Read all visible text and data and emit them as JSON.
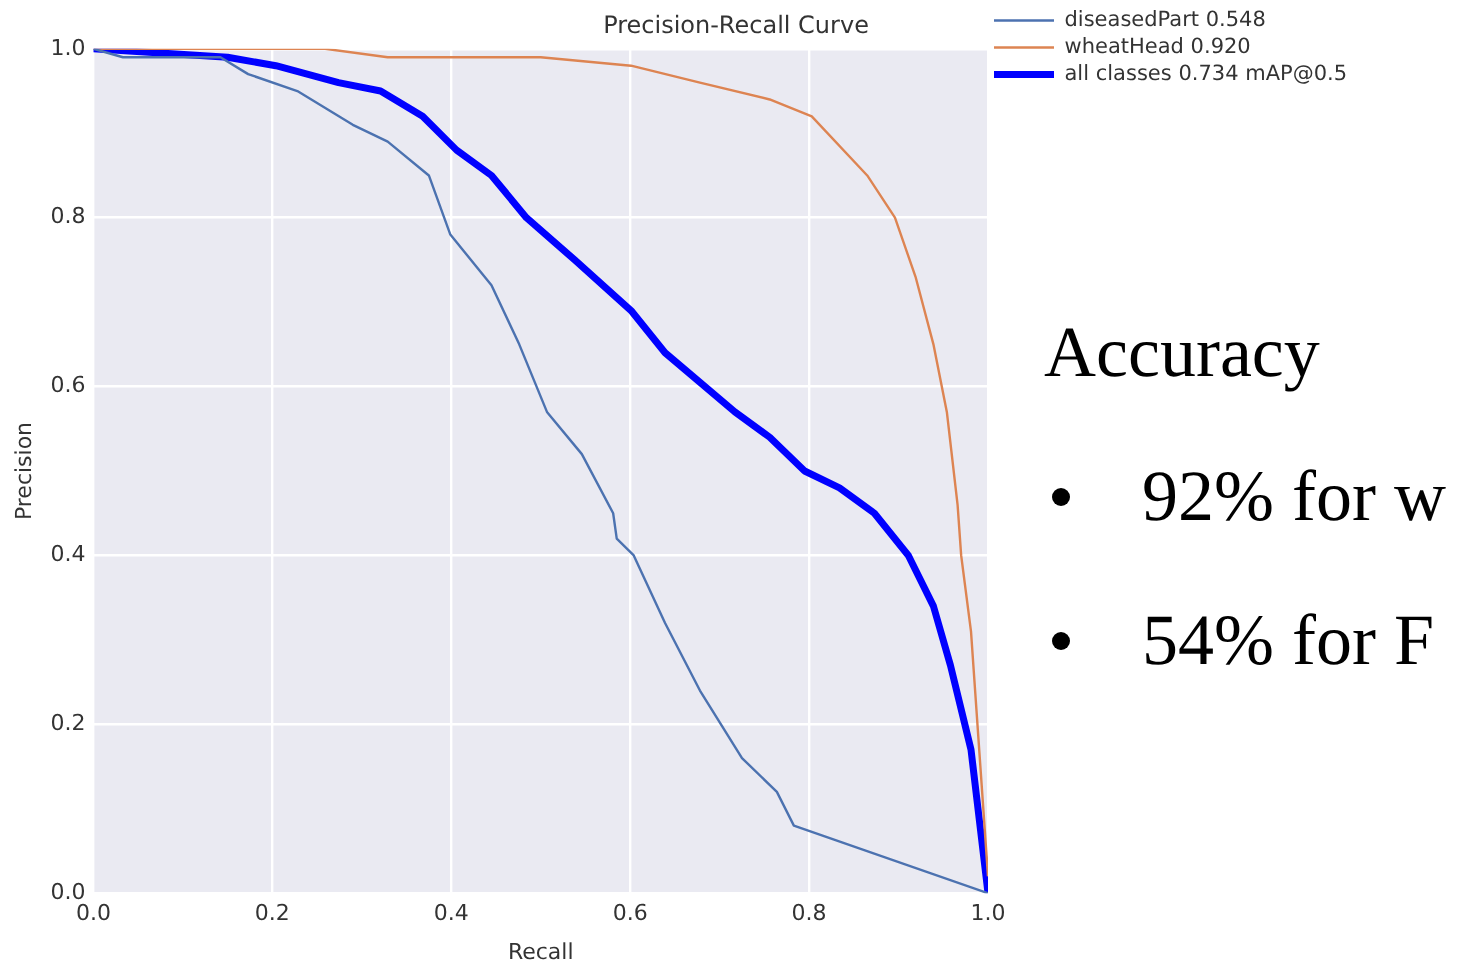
{
  "chart_data": {
    "type": "line",
    "title": "Precision-Recall Curve",
    "xlabel": "Recall",
    "ylabel": "Precision",
    "xlim": [
      0,
      1
    ],
    "ylim": [
      0,
      1
    ],
    "xticks": [
      {
        "value": 0,
        "label": "0.0"
      },
      {
        "value": 0.2,
        "label": "0.2"
      },
      {
        "value": 0.4,
        "label": "0.4"
      },
      {
        "value": 0.6,
        "label": "0.6"
      },
      {
        "value": 0.8,
        "label": "0.8"
      },
      {
        "value": 1,
        "label": "1.0"
      }
    ],
    "yticks": [
      {
        "value": 0,
        "label": "0.0"
      },
      {
        "value": 0.2,
        "label": "0.2"
      },
      {
        "value": 0.4,
        "label": "0.4"
      },
      {
        "value": 0.6,
        "label": "0.6"
      },
      {
        "value": 0.8,
        "label": "0.8"
      },
      {
        "value": 1,
        "label": "1.0"
      }
    ],
    "grid": true,
    "legend": "top right",
    "marker": "none",
    "line_style": "solid",
    "annotations": [
      "Accuracy",
      "92% for w",
      "54% for F"
    ],
    "series": [
      {
        "name": "diseasedPart 0.548",
        "color": "#4c72b0",
        "x": [
          0,
          0.033,
          0.142,
          0.173,
          0.228,
          0.29,
          0.329,
          0.375,
          0.399,
          0.445,
          0.476,
          0.507,
          0.546,
          0.581,
          0.585,
          0.604,
          0.639,
          0.678,
          0.725,
          0.764,
          0.783,
          1
        ],
        "values": [
          1,
          0.99,
          0.99,
          0.97,
          0.95,
          0.91,
          0.89,
          0.85,
          0.78,
          0.72,
          0.65,
          0.57,
          0.52,
          0.45,
          0.42,
          0.4,
          0.32,
          0.24,
          0.16,
          0.12,
          0.08,
          0
        ]
      },
      {
        "name": "wheatHead 0.920",
        "color": "#dd8452",
        "x": [
          0,
          0.259,
          0.329,
          0.5,
          0.601,
          0.678,
          0.756,
          0.803,
          0.865,
          0.896,
          0.919,
          0.939,
          0.954,
          0.966,
          0.97,
          0.981,
          1
        ],
        "values": [
          1,
          1,
          0.99,
          0.99,
          0.98,
          0.96,
          0.94,
          0.92,
          0.85,
          0.8,
          0.73,
          0.65,
          0.57,
          0.46,
          0.4,
          0.31,
          0.02
        ]
      },
      {
        "name": "all classes 0.734 mAP@0.5",
        "color": "#0000ff",
        "x": [
          0,
          0.15,
          0.204,
          0.274,
          0.321,
          0.368,
          0.406,
          0.445,
          0.484,
          0.538,
          0.601,
          0.639,
          0.717,
          0.756,
          0.795,
          0.834,
          0.873,
          0.911,
          0.939,
          0.958,
          0.981,
          1
        ],
        "values": [
          1,
          0.99,
          0.98,
          0.96,
          0.95,
          0.92,
          0.88,
          0.85,
          0.8,
          0.75,
          0.69,
          0.64,
          0.57,
          0.54,
          0.5,
          0.48,
          0.45,
          0.4,
          0.34,
          0.27,
          0.17,
          0
        ]
      }
    ]
  }
}
